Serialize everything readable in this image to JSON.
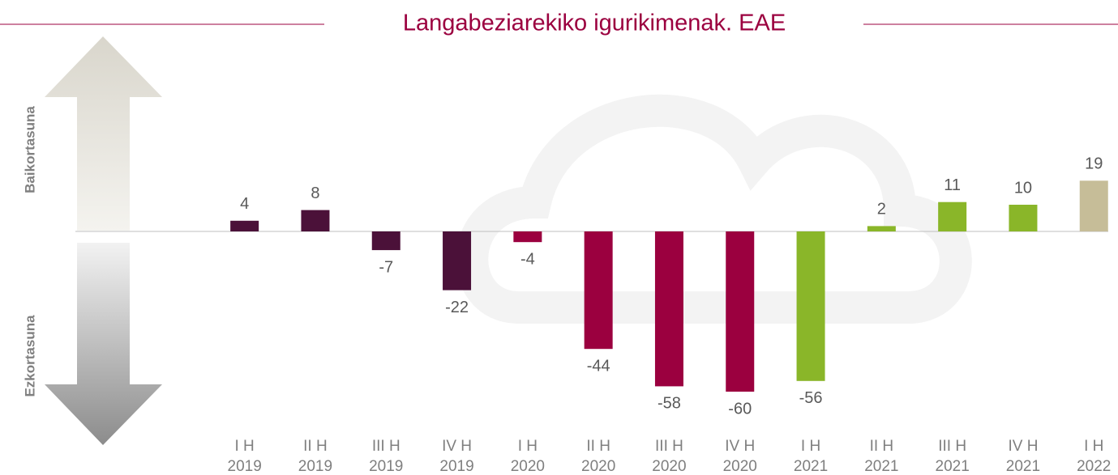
{
  "chart_data": {
    "type": "bar",
    "title": "Langabeziarekiko igurikimenak. EAE",
    "positive_label": "Baikortasuna",
    "negative_label": "Ezkortasuna",
    "categories": [
      [
        "I H",
        "2019"
      ],
      [
        "II H",
        "2019"
      ],
      [
        "III H",
        "2019"
      ],
      [
        "IV H",
        "2019"
      ],
      [
        "I H",
        "2020"
      ],
      [
        "II H",
        "2020"
      ],
      [
        "III H",
        "2020"
      ],
      [
        "IV H",
        "2020"
      ],
      [
        "I H",
        "2021"
      ],
      [
        "II H",
        "2021"
      ],
      [
        "III H",
        "2021"
      ],
      [
        "IV H",
        "2021"
      ],
      [
        "I H",
        "2022"
      ]
    ],
    "values": [
      4,
      8,
      -7,
      -22,
      -4,
      -44,
      -58,
      -60,
      -56,
      2,
      11,
      10,
      19
    ],
    "colors": [
      "#4b1139",
      "#4b1139",
      "#4b1139",
      "#4b1139",
      "#9b003f",
      "#9b003f",
      "#9b003f",
      "#9b003f",
      "#8ab629",
      "#8ab629",
      "#8ab629",
      "#8ab629",
      "#c6bd98"
    ],
    "ylim": [
      -70,
      25
    ]
  }
}
